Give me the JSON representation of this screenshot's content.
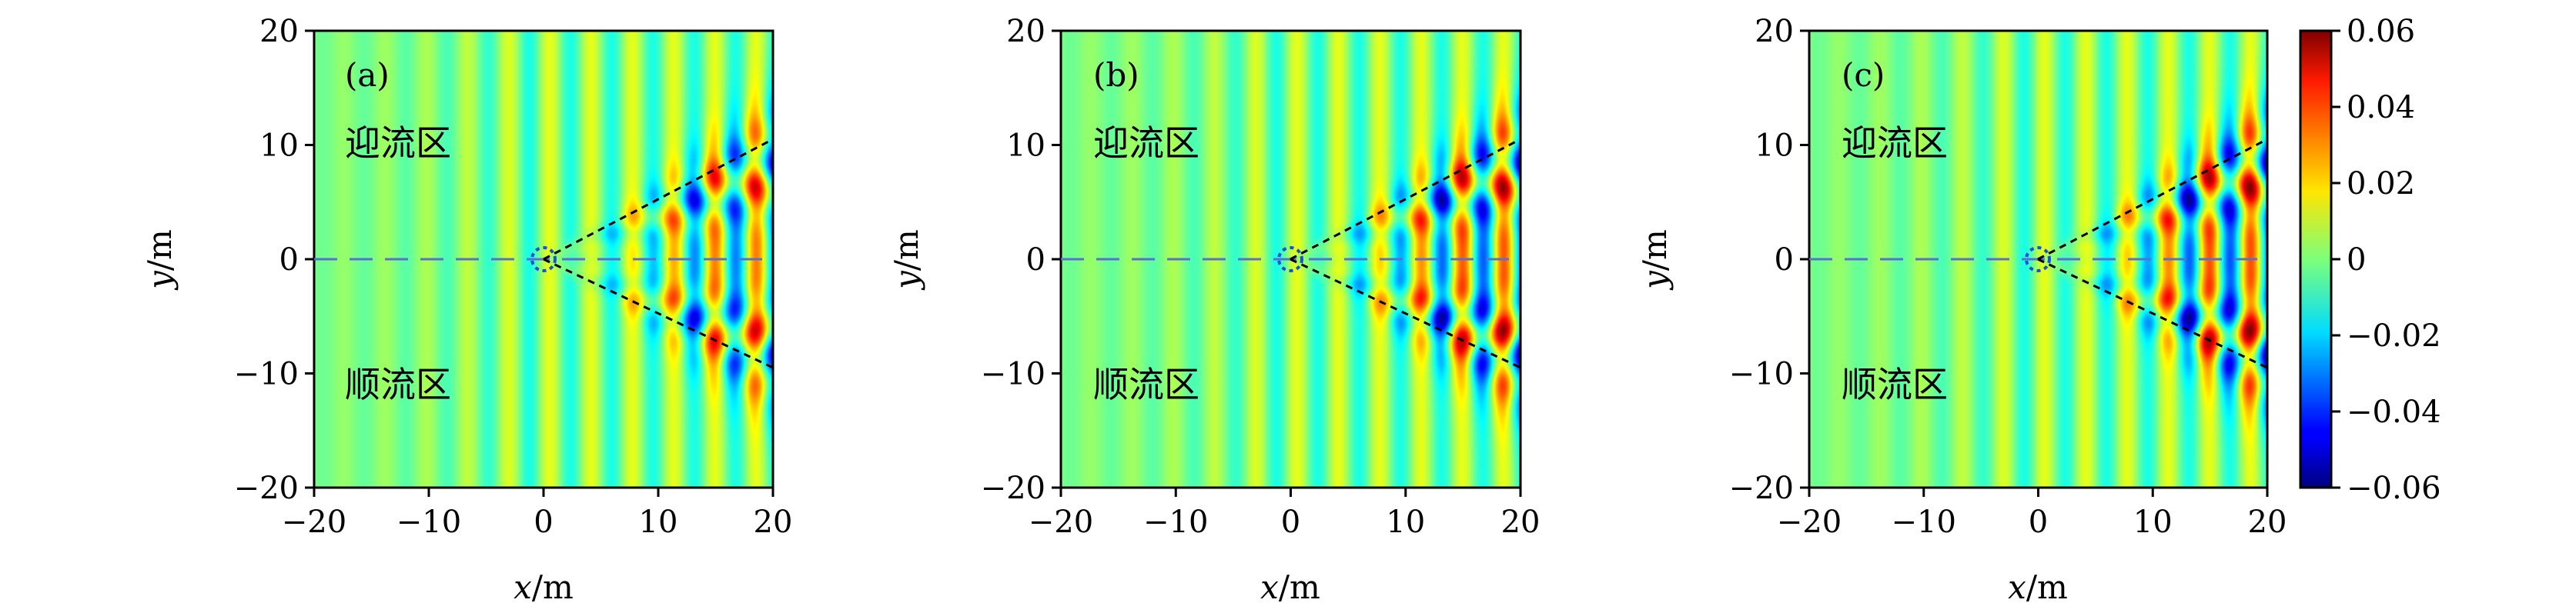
{
  "chart_data": {
    "type": "heatmap",
    "field": "wave elevation behind a moving source (ship-like Kelvin pattern)",
    "axes": {
      "xlabel_var": "x",
      "xlabel_unit": "/m",
      "ylabel_var": "y",
      "ylabel_unit": "/m",
      "xlim": [
        -20,
        20
      ],
      "ylim": [
        -20,
        20
      ],
      "xticks": [
        "−20",
        "−10",
        "0",
        "10",
        "20"
      ],
      "yticks": [
        "20",
        "10",
        "0",
        "−10",
        "−20"
      ],
      "xtick_values": [
        -20,
        -10,
        0,
        10,
        20
      ],
      "ytick_values": [
        20,
        10,
        0,
        -10,
        -20
      ]
    },
    "colorbar": {
      "range": [
        -0.06,
        0.06
      ],
      "ticks": [
        "0.06",
        "0.04",
        "0.02",
        "0",
        "−0.02",
        "−0.04",
        "−0.06"
      ],
      "tick_values": [
        0.06,
        0.04,
        0.02,
        0,
        -0.02,
        -0.04,
        -0.06
      ],
      "colormap": "jet"
    },
    "panels": [
      {
        "tag": "(a)",
        "upper_label": "迎流区",
        "lower_label": "顺流区",
        "wake_amplitude": 0.05
      },
      {
        "tag": "(b)",
        "upper_label": "迎流区",
        "lower_label": "顺流区",
        "wake_amplitude": 0.058
      },
      {
        "tag": "(c)",
        "upper_label": "迎流区",
        "lower_label": "顺流区",
        "wake_amplitude": 0.06
      }
    ],
    "source": {
      "x": 0,
      "y": 0,
      "radius": 1
    },
    "centerline_y": 0,
    "wake_lines": [
      {
        "from": [
          0,
          0
        ],
        "to": [
          20,
          10.5
        ]
      },
      {
        "from": [
          0,
          0
        ],
        "to": [
          20,
          -9.5
        ]
      }
    ],
    "colors": {
      "centerline": "#5a6fd6",
      "wake_line": "#000000",
      "source_circle": "#1a4fd8"
    }
  }
}
